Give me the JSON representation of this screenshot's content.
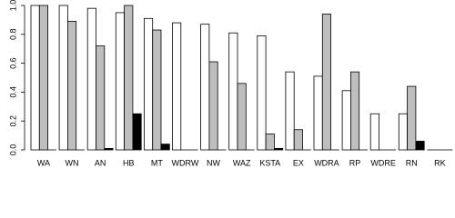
{
  "chart_data": {
    "type": "bar",
    "categories": [
      "WA",
      "WN",
      "AN",
      "HB",
      "MT",
      "WDRW",
      "NW",
      "WAZ",
      "KSTA",
      "EX",
      "WDRA",
      "RP",
      "WDRE",
      "RN",
      "RK"
    ],
    "series": [
      {
        "color": "#ffffff",
        "values": [
          1.0,
          1.0,
          0.98,
          0.95,
          0.91,
          0.88,
          0.87,
          0.81,
          0.79,
          0.54,
          0.51,
          0.41,
          0.25,
          0.25,
          0
        ]
      },
      {
        "color": "#bebebe",
        "values": [
          1.0,
          0.89,
          0.72,
          1.0,
          0.83,
          0,
          0.61,
          0.46,
          0.11,
          0.14,
          0.94,
          0.54,
          0,
          0.44,
          0
        ]
      },
      {
        "color": "#000000",
        "values": [
          0,
          0,
          0.01,
          0.25,
          0.04,
          0,
          0,
          0,
          0.01,
          0,
          0,
          0,
          0,
          0.06,
          0
        ]
      }
    ],
    "ylim": [
      0,
      1
    ],
    "yticks": [
      {
        "value": 0,
        "label": "0.0"
      },
      0.2,
      0.4,
      0.6,
      0.8,
      {
        "value": 1,
        "label": "1.0"
      }
    ]
  }
}
